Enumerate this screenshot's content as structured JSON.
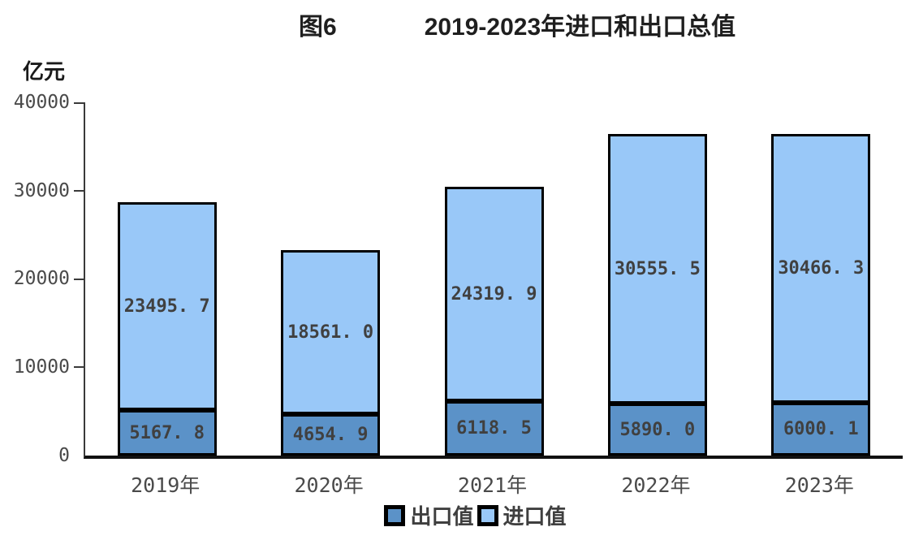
{
  "title": {
    "figure_label": "图6",
    "text": "2019-2023年进口和出口总值"
  },
  "y_axis": {
    "unit": "亿元",
    "tick_labels": [
      "40000",
      "30000",
      "20000",
      "10000",
      "0"
    ]
  },
  "x_axis": {
    "labels": [
      "2019年",
      "2020年",
      "2021年",
      "2022年",
      "2023年"
    ]
  },
  "legend": [
    {
      "label": "出口值",
      "color": "#5B92C8"
    },
    {
      "label": "进口值",
      "color": "#99C8F8"
    }
  ],
  "colors": {
    "export_fill": "#5B92C8",
    "import_fill": "#99C8F8",
    "bar_border": "#000000",
    "axis_line": "#3a3a3a",
    "value_text": "#404040",
    "title_text": "#1f1f1f"
  },
  "chart_data": {
    "type": "bar",
    "stacked": true,
    "title": "图6 2019-2023年进口和出口总值",
    "ylabel": "亿元",
    "ylim": [
      0,
      40000
    ],
    "yticks": [
      0,
      10000,
      20000,
      30000,
      40000
    ],
    "grid": false,
    "legend_position": "bottom",
    "categories": [
      "2019年",
      "2020年",
      "2021年",
      "2022年",
      "2023年"
    ],
    "series": [
      {
        "name": "出口值",
        "color": "#5B92C8",
        "values": [
          5167.8,
          4654.9,
          6118.5,
          5890.0,
          6000.1
        ],
        "display_labels": [
          "5167. 8",
          "4654. 9",
          "6118. 5",
          "5890. 0",
          "6000. 1"
        ]
      },
      {
        "name": "进口值",
        "color": "#99C8F8",
        "values": [
          23495.7,
          18561.0,
          24319.9,
          30555.5,
          30466.3
        ],
        "display_labels": [
          "23495. 7",
          "18561. 0",
          "24319. 9",
          "30555. 5",
          "30466. 3"
        ]
      }
    ]
  }
}
